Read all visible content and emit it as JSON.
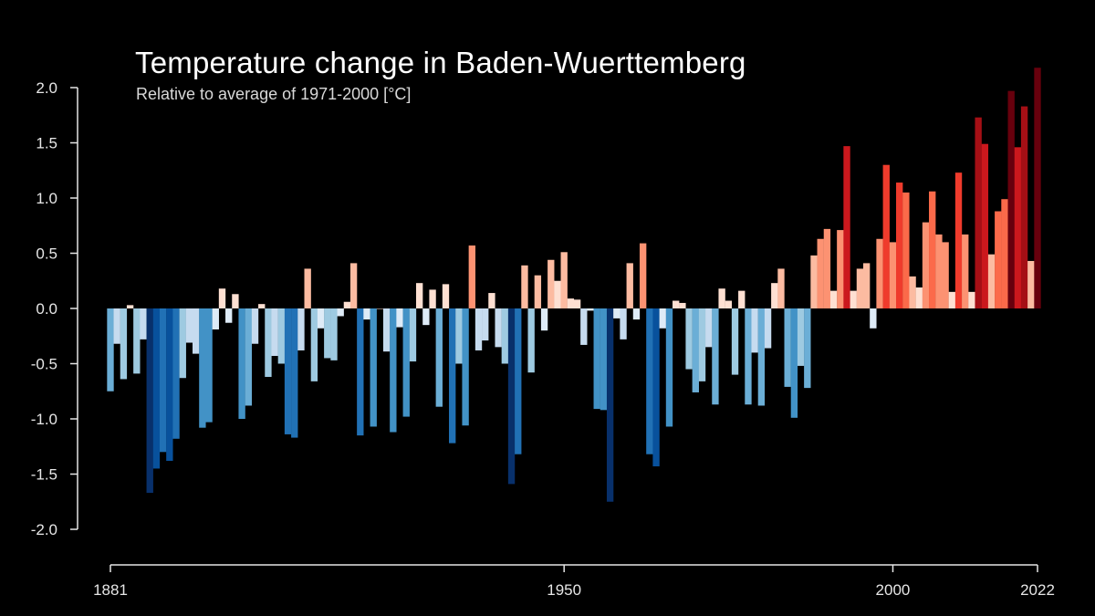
{
  "chart_data": {
    "type": "bar",
    "title": "Temperature change in Baden-Wuerttemberg",
    "subtitle": "Relative to average of 1971-2000  [°C]",
    "xlabel": "",
    "ylabel": "",
    "first_year": 1881,
    "last_year": 2022,
    "ylim": [
      -2.0,
      2.0
    ],
    "y_ticks": [
      "2.0",
      "1.5",
      "1.0",
      "0.5",
      "0.0",
      "-0.5",
      "-1.0",
      "-1.5",
      "-2.0"
    ],
    "x_ticks": [
      "1881",
      "1950",
      "2000",
      "2022"
    ],
    "grid": false,
    "legend": "none",
    "values": [
      -0.75,
      -0.32,
      -0.64,
      0.03,
      -0.59,
      -0.28,
      -1.67,
      -1.45,
      -1.3,
      -1.38,
      -1.18,
      -0.63,
      -0.31,
      -0.41,
      -1.08,
      -1.03,
      -0.19,
      0.18,
      -0.13,
      0.13,
      -1.0,
      -0.88,
      -0.32,
      0.04,
      -0.62,
      -0.43,
      -0.5,
      -1.14,
      -1.17,
      -0.38,
      0.36,
      -0.66,
      -0.18,
      -0.45,
      -0.47,
      -0.07,
      0.06,
      0.41,
      -1.15,
      -0.1,
      -1.07,
      0.0,
      -0.39,
      -1.12,
      -0.17,
      -0.98,
      -0.48,
      0.23,
      -0.15,
      0.17,
      -0.89,
      0.22,
      -1.22,
      -0.5,
      -1.06,
      0.57,
      -0.38,
      -0.29,
      0.14,
      -0.35,
      -0.5,
      -1.59,
      -1.32,
      0.39,
      -0.58,
      0.3,
      -0.2,
      0.44,
      0.25,
      0.51,
      0.09,
      0.08,
      -0.33,
      -0.02,
      -0.91,
      -0.92,
      -1.75,
      -0.09,
      -0.28,
      0.41,
      -0.1,
      0.59,
      -1.32,
      -1.43,
      -0.18,
      -1.07,
      0.07,
      0.05,
      -0.55,
      -0.76,
      -0.66,
      -0.35,
      -0.87,
      0.18,
      0.07,
      -0.6,
      0.16,
      -0.87,
      -0.4,
      -0.88,
      -0.36,
      0.23,
      0.36,
      -0.71,
      -0.99,
      -0.52,
      -0.72,
      0.48,
      0.63,
      0.72,
      0.16,
      0.71,
      1.47,
      0.16,
      0.36,
      0.41,
      -0.18,
      0.63,
      1.3,
      0.6,
      1.14,
      1.05,
      0.29,
      0.19,
      0.78,
      1.06,
      0.67,
      0.6,
      0.15,
      1.23,
      0.67,
      0.15,
      1.73,
      1.49,
      0.49,
      0.88,
      0.99,
      1.97,
      1.46,
      1.83,
      0.43,
      2.18
    ],
    "colors": {
      "background": "#000000",
      "axis": "#e6e6e6",
      "text": "#ffffff",
      "scale_cold": [
        "#08306b",
        "#08519c",
        "#2171b5",
        "#4292c6",
        "#6baed6",
        "#9ecae1",
        "#c6dbef",
        "#deebf7"
      ],
      "scale_warm": [
        "#fee0d2",
        "#fcbba1",
        "#fc9272",
        "#fb6a4a",
        "#ef3b2c",
        "#cb181d",
        "#a50f15",
        "#67000d"
      ]
    }
  }
}
